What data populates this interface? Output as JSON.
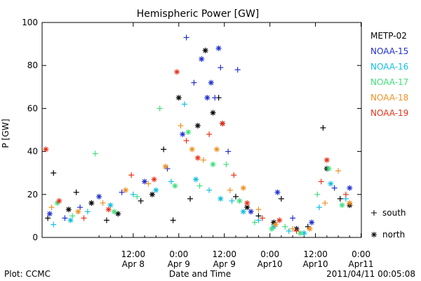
{
  "chart_data": {
    "type": "scatter",
    "title": "Hemispheric Power [GW]",
    "ylabel": "P [GW]",
    "xlabel": "Date and Time",
    "ylim": [
      0,
      100
    ],
    "y_ticks": [
      0,
      20,
      40,
      60,
      80,
      100
    ],
    "xlim": [
      "2011-04-07 12:00",
      "2011-04-11 00:05"
    ],
    "x_ticks": [
      {
        "time": "2011-04-08 12:00",
        "line1": "12:00",
        "line2": "Apr 8"
      },
      {
        "time": "2011-04-09 00:00",
        "line1": "0:00",
        "line2": "Apr 9"
      },
      {
        "time": "2011-04-09 12:00",
        "line1": "12:00",
        "line2": "Apr 9"
      },
      {
        "time": "2011-04-10 00:00",
        "line1": "0:00",
        "line2": "Apr10"
      },
      {
        "time": "2011-04-10 12:00",
        "line1": "12:00",
        "line2": "Apr10"
      },
      {
        "time": "2011-04-11 00:00",
        "line1": "0:00",
        "line2": "Apr11"
      }
    ],
    "marker_legend": [
      {
        "symbol": "+",
        "label": "south"
      },
      {
        "symbol": "*",
        "label": "north"
      }
    ],
    "series": [
      {
        "name": "METP-02",
        "color": "#000000",
        "points": [
          {
            "x": "2011-04-07 13:30",
            "y": 9,
            "m": "+"
          },
          {
            "x": "2011-04-07 15:00",
            "y": 30,
            "m": "+"
          },
          {
            "x": "2011-04-07 19:00",
            "y": 13,
            "m": "*"
          },
          {
            "x": "2011-04-07 21:00",
            "y": 21,
            "m": "+"
          },
          {
            "x": "2011-04-08 01:00",
            "y": 16,
            "m": "*"
          },
          {
            "x": "2011-04-08 05:00",
            "y": 8,
            "m": "+"
          },
          {
            "x": "2011-04-08 08:00",
            "y": 11,
            "m": "*"
          },
          {
            "x": "2011-04-08 14:00",
            "y": 17,
            "m": "+"
          },
          {
            "x": "2011-04-08 17:00",
            "y": 20,
            "m": "*"
          },
          {
            "x": "2011-04-08 20:00",
            "y": 41,
            "m": "+"
          },
          {
            "x": "2011-04-08 22:30",
            "y": 8,
            "m": "+"
          },
          {
            "x": "2011-04-09 00:00",
            "y": 65,
            "m": "*"
          },
          {
            "x": "2011-04-09 03:00",
            "y": 18,
            "m": "+"
          },
          {
            "x": "2011-04-09 05:00",
            "y": 52,
            "m": "*"
          },
          {
            "x": "2011-04-09 07:00",
            "y": 87,
            "m": "*"
          },
          {
            "x": "2011-04-09 09:00",
            "y": 58,
            "m": "*"
          },
          {
            "x": "2011-04-09 10:30",
            "y": 65,
            "m": "+"
          },
          {
            "x": "2011-04-09 11:30",
            "y": 53,
            "m": "*"
          },
          {
            "x": "2011-04-09 15:00",
            "y": 19,
            "m": "+"
          },
          {
            "x": "2011-04-09 18:00",
            "y": 14,
            "m": "*"
          },
          {
            "x": "2011-04-09 21:00",
            "y": 10,
            "m": "+"
          },
          {
            "x": "2011-04-10 01:00",
            "y": 7,
            "m": "*"
          },
          {
            "x": "2011-04-10 03:00",
            "y": 18,
            "m": "+"
          },
          {
            "x": "2011-04-10 07:00",
            "y": 4,
            "m": "*"
          },
          {
            "x": "2011-04-10 10:00",
            "y": 5,
            "m": "+"
          },
          {
            "x": "2011-04-10 14:00",
            "y": 51,
            "m": "+"
          },
          {
            "x": "2011-04-10 15:00",
            "y": 32,
            "m": "*"
          },
          {
            "x": "2011-04-10 18:30",
            "y": 18,
            "m": "+"
          },
          {
            "x": "2011-04-10 21:00",
            "y": 15,
            "m": "*"
          }
        ]
      },
      {
        "name": "NOAA-15",
        "color": "#1f2fd0",
        "points": [
          {
            "x": "2011-04-07 14:00",
            "y": 11,
            "m": "*"
          },
          {
            "x": "2011-04-07 18:00",
            "y": 9,
            "m": "+"
          },
          {
            "x": "2011-04-07 22:00",
            "y": 14,
            "m": "+"
          },
          {
            "x": "2011-04-08 03:00",
            "y": 19,
            "m": "*"
          },
          {
            "x": "2011-04-08 09:00",
            "y": 21,
            "m": "+"
          },
          {
            "x": "2011-04-08 15:00",
            "y": 26,
            "m": "*"
          },
          {
            "x": "2011-04-08 21:00",
            "y": 32,
            "m": "+"
          },
          {
            "x": "2011-04-09 01:00",
            "y": 48,
            "m": "*"
          },
          {
            "x": "2011-04-09 02:00",
            "y": 93,
            "m": "+"
          },
          {
            "x": "2011-04-09 04:00",
            "y": 72,
            "m": "+"
          },
          {
            "x": "2011-04-09 06:00",
            "y": 83,
            "m": "*"
          },
          {
            "x": "2011-04-09 07:30",
            "y": 65,
            "m": "*"
          },
          {
            "x": "2011-04-09 08:30",
            "y": 72,
            "m": "*"
          },
          {
            "x": "2011-04-09 09:30",
            "y": 65,
            "m": "+"
          },
          {
            "x": "2011-04-09 10:30",
            "y": 88,
            "m": "*"
          },
          {
            "x": "2011-04-09 11:00",
            "y": 79,
            "m": "+"
          },
          {
            "x": "2011-04-09 13:00",
            "y": 40,
            "m": "+"
          },
          {
            "x": "2011-04-09 15:30",
            "y": 78,
            "m": "+"
          },
          {
            "x": "2011-04-09 19:00",
            "y": 12,
            "m": "*"
          },
          {
            "x": "2011-04-10 02:00",
            "y": 21,
            "m": "*"
          },
          {
            "x": "2011-04-10 06:00",
            "y": 9,
            "m": "+"
          },
          {
            "x": "2011-04-10 11:00",
            "y": 7,
            "m": "*"
          },
          {
            "x": "2011-04-10 17:00",
            "y": 23,
            "m": "+"
          },
          {
            "x": "2011-04-10 21:00",
            "y": 23,
            "m": "*"
          }
        ]
      },
      {
        "name": "NOAA-16",
        "color": "#12bfe0",
        "points": [
          {
            "x": "2011-04-07 15:00",
            "y": 6,
            "m": "+"
          },
          {
            "x": "2011-04-07 19:30",
            "y": 8,
            "m": "*"
          },
          {
            "x": "2011-04-08 00:00",
            "y": 12,
            "m": "+"
          },
          {
            "x": "2011-04-08 06:00",
            "y": 15,
            "m": "*"
          },
          {
            "x": "2011-04-08 12:00",
            "y": 20,
            "m": "+"
          },
          {
            "x": "2011-04-08 18:00",
            "y": 22,
            "m": "*"
          },
          {
            "x": "2011-04-08 22:00",
            "y": 26,
            "m": "+"
          },
          {
            "x": "2011-04-09 01:30",
            "y": 62,
            "m": "+"
          },
          {
            "x": "2011-04-09 04:30",
            "y": 27,
            "m": "*"
          },
          {
            "x": "2011-04-09 08:00",
            "y": 22,
            "m": "+"
          },
          {
            "x": "2011-04-09 11:00",
            "y": 18,
            "m": "*"
          },
          {
            "x": "2011-04-09 14:00",
            "y": 17,
            "m": "+"
          },
          {
            "x": "2011-04-09 17:00",
            "y": 12,
            "m": "*"
          },
          {
            "x": "2011-04-09 21:00",
            "y": 8,
            "m": "+"
          },
          {
            "x": "2011-04-10 01:00",
            "y": 5,
            "m": "*"
          },
          {
            "x": "2011-04-10 05:00",
            "y": 3,
            "m": "+"
          },
          {
            "x": "2011-04-10 09:00",
            "y": 2,
            "m": "*"
          },
          {
            "x": "2011-04-10 13:00",
            "y": 14,
            "m": "+"
          },
          {
            "x": "2011-04-10 16:00",
            "y": 25,
            "m": "*"
          },
          {
            "x": "2011-04-10 20:00",
            "y": 18,
            "m": "+"
          }
        ]
      },
      {
        "name": "NOAA-17",
        "color": "#3fe07a",
        "points": [
          {
            "x": "2011-04-07 16:00",
            "y": 16,
            "m": "*"
          },
          {
            "x": "2011-04-07 20:00",
            "y": 10,
            "m": "+"
          },
          {
            "x": "2011-04-08 02:00",
            "y": 39,
            "m": "+"
          },
          {
            "x": "2011-04-08 07:00",
            "y": 12,
            "m": "*"
          },
          {
            "x": "2011-04-08 13:00",
            "y": 19,
            "m": "+"
          },
          {
            "x": "2011-04-08 19:00",
            "y": 60,
            "m": "+"
          },
          {
            "x": "2011-04-08 23:00",
            "y": 24,
            "m": "*"
          },
          {
            "x": "2011-04-09 02:30",
            "y": 49,
            "m": "*"
          },
          {
            "x": "2011-04-09 05:30",
            "y": 24,
            "m": "+"
          },
          {
            "x": "2011-04-09 09:00",
            "y": 34,
            "m": "*"
          },
          {
            "x": "2011-04-09 12:30",
            "y": 34,
            "m": "+"
          },
          {
            "x": "2011-04-09 16:00",
            "y": 17,
            "m": "*"
          },
          {
            "x": "2011-04-09 20:00",
            "y": 7,
            "m": "+"
          },
          {
            "x": "2011-04-10 00:30",
            "y": 4,
            "m": "*"
          },
          {
            "x": "2011-04-10 04:00",
            "y": 5,
            "m": "+"
          },
          {
            "x": "2011-04-10 08:00",
            "y": 2,
            "m": "*"
          },
          {
            "x": "2011-04-10 12:30",
            "y": 20,
            "m": "+"
          },
          {
            "x": "2011-04-10 15:30",
            "y": 32,
            "m": "*"
          },
          {
            "x": "2011-04-10 19:00",
            "y": 15,
            "m": "*"
          }
        ]
      },
      {
        "name": "NOAA-18",
        "color": "#f09020",
        "points": [
          {
            "x": "2011-04-07 14:30",
            "y": 14,
            "m": "+"
          },
          {
            "x": "2011-04-07 21:30",
            "y": 12,
            "m": "*"
          },
          {
            "x": "2011-04-08 04:00",
            "y": 16,
            "m": "+"
          },
          {
            "x": "2011-04-08 10:00",
            "y": 22,
            "m": "*"
          },
          {
            "x": "2011-04-08 16:00",
            "y": 25,
            "m": "+"
          },
          {
            "x": "2011-04-08 20:30",
            "y": 33,
            "m": "*"
          },
          {
            "x": "2011-04-09 00:30",
            "y": 52,
            "m": "+"
          },
          {
            "x": "2011-04-09 03:30",
            "y": 41,
            "m": "*"
          },
          {
            "x": "2011-04-09 06:30",
            "y": 36,
            "m": "+"
          },
          {
            "x": "2011-04-09 10:00",
            "y": 41,
            "m": "*"
          },
          {
            "x": "2011-04-09 13:30",
            "y": 22,
            "m": "+"
          },
          {
            "x": "2011-04-09 17:00",
            "y": 23,
            "m": "*"
          },
          {
            "x": "2011-04-09 21:00",
            "y": 13,
            "m": "+"
          },
          {
            "x": "2011-04-10 01:30",
            "y": 6,
            "m": "*"
          },
          {
            "x": "2011-04-10 06:00",
            "y": 4,
            "m": "+"
          },
          {
            "x": "2011-04-10 10:30",
            "y": 4,
            "m": "*"
          },
          {
            "x": "2011-04-10 14:30",
            "y": 16,
            "m": "+"
          },
          {
            "x": "2011-04-10 18:00",
            "y": 31,
            "m": "+"
          },
          {
            "x": "2011-04-10 21:00",
            "y": 16,
            "m": "*"
          }
        ]
      },
      {
        "name": "NOAA-19",
        "color": "#e8321a",
        "points": [
          {
            "x": "2011-04-07 13:00",
            "y": 41,
            "m": "*"
          },
          {
            "x": "2011-04-07 16:30",
            "y": 17,
            "m": "*"
          },
          {
            "x": "2011-04-07 23:00",
            "y": 9,
            "m": "+"
          },
          {
            "x": "2011-04-08 05:30",
            "y": 13,
            "m": "*"
          },
          {
            "x": "2011-04-08 11:30",
            "y": 29,
            "m": "+"
          },
          {
            "x": "2011-04-08 17:30",
            "y": 27,
            "m": "*"
          },
          {
            "x": "2011-04-08 23:30",
            "y": 77,
            "m": "*"
          },
          {
            "x": "2011-04-09 02:00",
            "y": 45,
            "m": "+"
          },
          {
            "x": "2011-04-09 05:00",
            "y": 37,
            "m": "*"
          },
          {
            "x": "2011-04-09 08:00",
            "y": 48,
            "m": "+"
          },
          {
            "x": "2011-04-09 11:30",
            "y": 53,
            "m": "*"
          },
          {
            "x": "2011-04-09 14:30",
            "y": 29,
            "m": "+"
          },
          {
            "x": "2011-04-09 18:00",
            "y": 16,
            "m": "*"
          },
          {
            "x": "2011-04-09 22:00",
            "y": 9,
            "m": "+"
          },
          {
            "x": "2011-04-10 02:30",
            "y": 8,
            "m": "*"
          },
          {
            "x": "2011-04-10 07:00",
            "y": 3,
            "m": "+"
          },
          {
            "x": "2011-04-10 13:30",
            "y": 26,
            "m": "+"
          },
          {
            "x": "2011-04-10 15:00",
            "y": 36,
            "m": "*"
          },
          {
            "x": "2011-04-10 20:00",
            "y": 20,
            "m": "+"
          }
        ]
      }
    ]
  },
  "footer": {
    "left": "Plot: CCMC",
    "right": "2011/04/11 00:05:08"
  }
}
